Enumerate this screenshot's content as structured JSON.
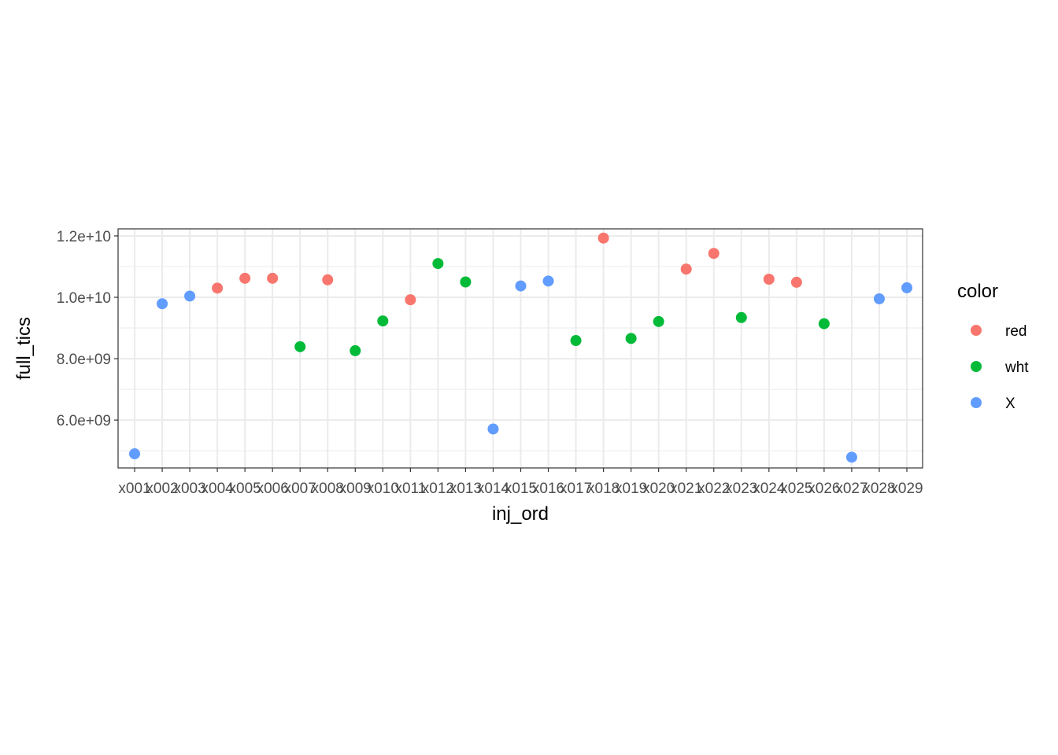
{
  "chart_data": {
    "type": "scatter",
    "xlabel": "inj_ord",
    "ylabel": "full_tics",
    "categories": [
      "x001",
      "x002",
      "x003",
      "x004",
      "x005",
      "x006",
      "x007",
      "x008",
      "x009",
      "x010",
      "x011",
      "x012",
      "x013",
      "x014",
      "x015",
      "x016",
      "x017",
      "x018",
      "x019",
      "x020",
      "x021",
      "x022",
      "x023",
      "x024",
      "x025",
      "x026",
      "x027",
      "x028",
      "x029"
    ],
    "y_ticks": [
      6000000000,
      8000000000,
      10000000000,
      12000000000
    ],
    "y_tick_labels": [
      "6.0e+09",
      "8.0e+09",
      "1.0e+10",
      "1.2e+10"
    ],
    "ylim": [
      4440000000,
      12230000000
    ],
    "grid": true,
    "legend": {
      "title": "color",
      "position": "right",
      "entries": [
        {
          "label": "red",
          "color": "#F8766D"
        },
        {
          "label": "wht",
          "color": "#00BA38"
        },
        {
          "label": "X",
          "color": "#619CFF"
        }
      ]
    },
    "series": [
      {
        "name": "red",
        "color": "#F8766D",
        "x": [
          "x004",
          "x005",
          "x006",
          "x008",
          "x011",
          "x018",
          "x021",
          "x022",
          "x024",
          "x025"
        ],
        "values": [
          10300000000,
          10620000000,
          10620000000,
          10570000000,
          9920000000,
          11930000000,
          10920000000,
          11430000000,
          10590000000,
          10490000000
        ]
      },
      {
        "name": "wht",
        "color": "#00BA38",
        "x": [
          "x007",
          "x009",
          "x010",
          "x012",
          "x013",
          "x017",
          "x019",
          "x020",
          "x023",
          "x026"
        ],
        "values": [
          8390000000,
          8260000000,
          9230000000,
          11100000000,
          10500000000,
          8590000000,
          8660000000,
          9210000000,
          9340000000,
          9140000000
        ]
      },
      {
        "name": "X",
        "color": "#619CFF",
        "x": [
          "x001",
          "x002",
          "x003",
          "x014",
          "x015",
          "x016",
          "x027",
          "x028",
          "x029"
        ],
        "values": [
          4900000000,
          9790000000,
          10040000000,
          5710000000,
          10370000000,
          10530000000,
          4790000000,
          9950000000,
          10310000000
        ]
      }
    ]
  }
}
